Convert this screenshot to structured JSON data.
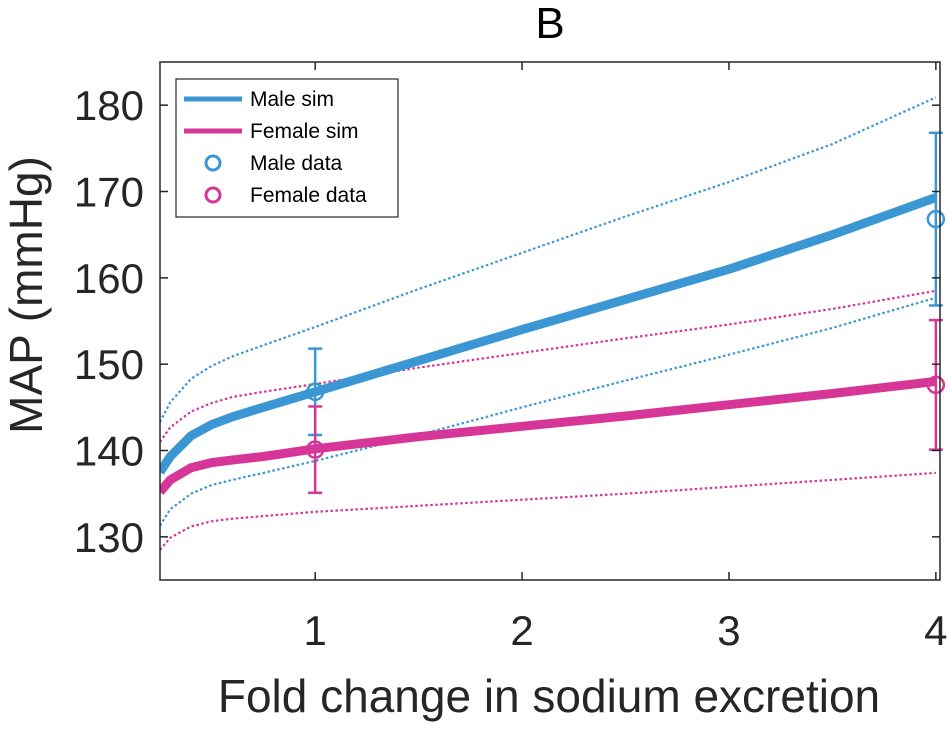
{
  "chart_data": {
    "type": "line",
    "title": "B",
    "xlabel": "Fold change in sodium excretion",
    "ylabel": "MAP (mmHg)",
    "xlim": [
      0.25,
      4.02
    ],
    "ylim": [
      125,
      185
    ],
    "xticks": [
      1,
      2,
      3,
      4
    ],
    "yticks": [
      130,
      140,
      150,
      160,
      170,
      180
    ],
    "grid": false,
    "legend_position": "top-left",
    "colors": {
      "male": "#3a97d4",
      "female": "#d63697"
    },
    "series": [
      {
        "name": "Male sim",
        "kind": "line",
        "x": [
          0.25,
          0.3,
          0.4,
          0.5,
          0.6,
          0.75,
          1.0,
          1.5,
          2.0,
          2.5,
          3.0,
          3.5,
          4.0
        ],
        "y": [
          137.5,
          139.3,
          141.7,
          143.0,
          143.9,
          145.0,
          146.8,
          150.4,
          154.0,
          157.5,
          161.0,
          165.0,
          169.3
        ]
      },
      {
        "name": "Male sim upper",
        "kind": "dotted",
        "x": [
          0.25,
          0.3,
          0.4,
          0.5,
          0.6,
          0.75,
          1.0,
          1.5,
          2.0,
          2.5,
          3.0,
          3.5,
          4.0
        ],
        "y": [
          143.3,
          145.6,
          148.3,
          149.8,
          150.9,
          152.2,
          154.3,
          158.7,
          162.9,
          167.1,
          171.1,
          175.5,
          180.9
        ]
      },
      {
        "name": "Male sim lower",
        "kind": "dotted",
        "x": [
          0.25,
          0.3,
          0.4,
          0.5,
          0.6,
          0.75,
          1.0,
          1.5,
          2.0,
          2.5,
          3.0,
          3.5,
          4.0
        ],
        "y": [
          131.3,
          133.2,
          135.0,
          136.0,
          136.6,
          137.4,
          138.8,
          141.8,
          145.0,
          148.1,
          151.1,
          154.2,
          157.7
        ]
      },
      {
        "name": "Female sim",
        "kind": "line",
        "x": [
          0.25,
          0.3,
          0.4,
          0.5,
          0.6,
          0.75,
          1.0,
          1.5,
          2.0,
          2.5,
          3.0,
          3.5,
          4.0
        ],
        "y": [
          135.2,
          136.6,
          138.0,
          138.6,
          138.9,
          139.3,
          140.2,
          141.6,
          142.8,
          144.0,
          145.3,
          146.6,
          148.0
        ]
      },
      {
        "name": "Female sim upper",
        "kind": "dotted",
        "x": [
          0.25,
          0.3,
          0.4,
          0.5,
          0.6,
          0.75,
          1.0,
          1.5,
          2.0,
          2.5,
          3.0,
          3.5,
          4.0
        ],
        "y": [
          141.0,
          142.7,
          144.5,
          145.5,
          146.2,
          146.8,
          147.7,
          149.6,
          151.3,
          153.0,
          154.6,
          156.4,
          158.5
        ]
      },
      {
        "name": "Female sim lower",
        "kind": "dotted",
        "x": [
          0.25,
          0.3,
          0.4,
          0.5,
          0.6,
          0.75,
          1.0,
          1.5,
          2.0,
          2.5,
          3.0,
          3.5,
          4.0
        ],
        "y": [
          128.5,
          129.9,
          131.2,
          131.8,
          132.1,
          132.4,
          132.9,
          133.6,
          134.3,
          135.0,
          135.8,
          136.6,
          137.4
        ]
      },
      {
        "name": "Male data",
        "kind": "errorbar",
        "x": [
          1,
          4
        ],
        "y": [
          146.8,
          166.8
        ],
        "err": [
          5.0,
          10.0
        ]
      },
      {
        "name": "Female data",
        "kind": "errorbar",
        "x": [
          1,
          4
        ],
        "y": [
          140.1,
          147.6
        ],
        "err": [
          5.0,
          7.5
        ]
      }
    ],
    "legend": [
      {
        "label": "Male sim",
        "symbol": "line",
        "color": "#3a97d4"
      },
      {
        "label": "Female sim",
        "symbol": "line",
        "color": "#d63697"
      },
      {
        "label": "Male data",
        "symbol": "circle",
        "color": "#3a97d4"
      },
      {
        "label": "Female data",
        "symbol": "circle",
        "color": "#d63697"
      }
    ]
  }
}
